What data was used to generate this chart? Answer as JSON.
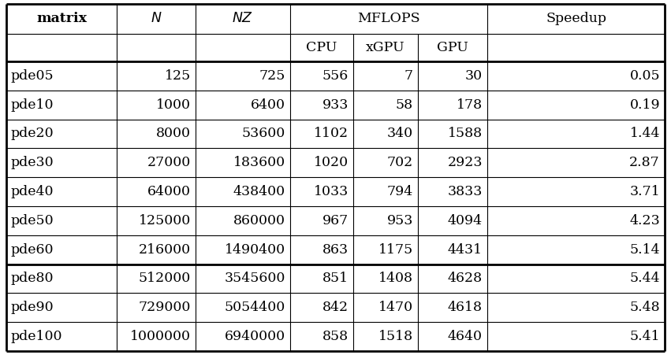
{
  "rows": [
    [
      "pde05",
      "125",
      "725",
      "556",
      "7",
      "30",
      "0.05"
    ],
    [
      "pde10",
      "1000",
      "6400",
      "933",
      "58",
      "178",
      "0.19"
    ],
    [
      "pde20",
      "8000",
      "53600",
      "1102",
      "340",
      "1588",
      "1.44"
    ],
    [
      "pde30",
      "27000",
      "183600",
      "1020",
      "702",
      "2923",
      "2.87"
    ],
    [
      "pde40",
      "64000",
      "438400",
      "1033",
      "794",
      "3833",
      "3.71"
    ],
    [
      "pde50",
      "125000",
      "860000",
      "967",
      "953",
      "4094",
      "4.23"
    ],
    [
      "pde60",
      "216000",
      "1490400",
      "863",
      "1175",
      "4431",
      "5.14"
    ],
    [
      "pde80",
      "512000",
      "3545600",
      "851",
      "1408",
      "4628",
      "5.44"
    ],
    [
      "pde90",
      "729000",
      "5054400",
      "842",
      "1470",
      "4618",
      "5.48"
    ],
    [
      "pde100",
      "1000000",
      "6940000",
      "858",
      "1518",
      "4640",
      "5.41"
    ]
  ],
  "thick_line_after_row7": true,
  "col_alignments": [
    "left",
    "right",
    "right",
    "right",
    "right",
    "right",
    "right"
  ],
  "background_color": "#ffffff",
  "line_color": "#000000",
  "font_size": 12.5,
  "header_font_size": 12.5
}
